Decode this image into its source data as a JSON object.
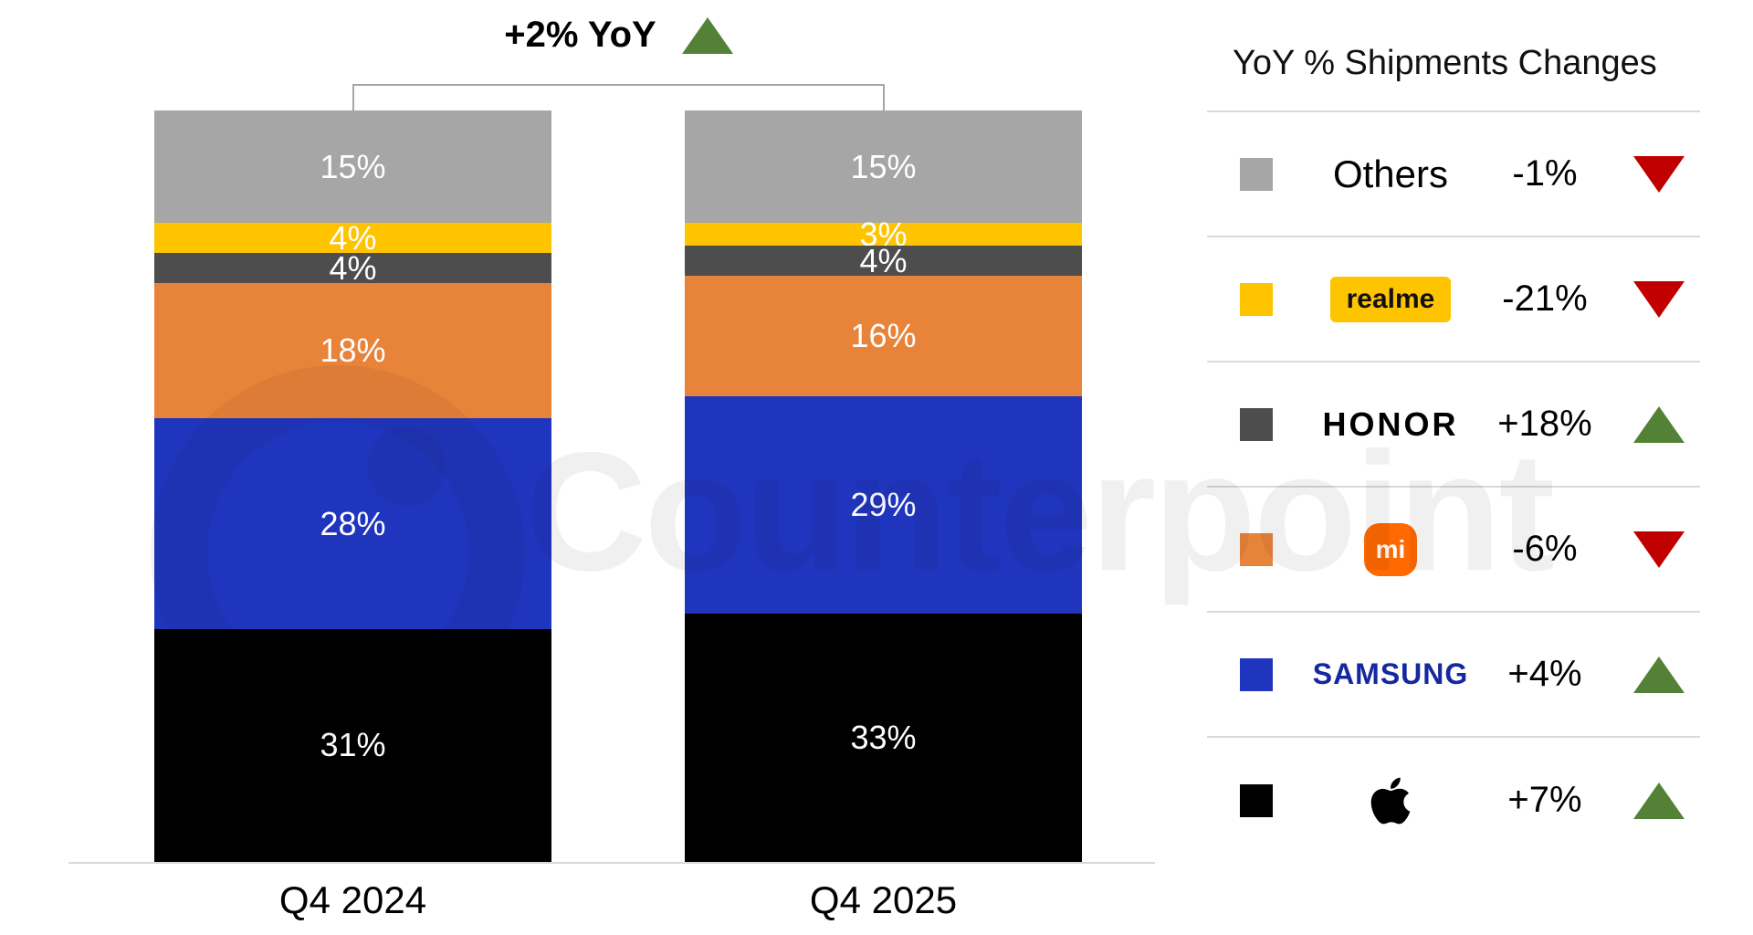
{
  "watermark": "Counterpoint",
  "legend": {
    "title": "YoY % Shipments Changes",
    "rows": [
      {
        "id": "others",
        "label": "Others",
        "logo_type": "text",
        "change": "-1%",
        "direction": "down",
        "swatch_color": "#a6a6a6"
      },
      {
        "id": "realme",
        "label": "realme",
        "logo_type": "badge",
        "change": "-21%",
        "direction": "down",
        "swatch_color": "#ffc400"
      },
      {
        "id": "honor",
        "label": "HONOR",
        "logo_type": "honor",
        "change": "+18%",
        "direction": "up",
        "swatch_color": "#4d4d4d"
      },
      {
        "id": "xiaomi",
        "label": "mi",
        "logo_type": "tile",
        "change": "-6%",
        "direction": "down",
        "swatch_color": "#e8833a"
      },
      {
        "id": "samsung",
        "label": "SAMSUNG",
        "logo_type": "samsung",
        "change": "+4%",
        "direction": "up",
        "swatch_color": "#1f35be"
      },
      {
        "id": "apple",
        "label": "",
        "logo_type": "apple",
        "change": "+7%",
        "direction": "up",
        "swatch_color": "#000000"
      }
    ]
  },
  "chart_data": {
    "type": "bar",
    "subtype": "stacked-100-percent",
    "title": "",
    "annotation": "+2% YoY",
    "annotation_direction": "up",
    "categories": [
      "Q4 2024",
      "Q4 2025"
    ],
    "series": [
      {
        "name": "Apple",
        "color": "#000000",
        "values": [
          31,
          33
        ]
      },
      {
        "name": "Samsung",
        "color": "#1f35be",
        "values": [
          28,
          29
        ]
      },
      {
        "name": "Xiaomi",
        "color": "#e8833a",
        "values": [
          18,
          16
        ]
      },
      {
        "name": "HONOR",
        "color": "#4d4d4d",
        "values": [
          4,
          4
        ]
      },
      {
        "name": "realme",
        "color": "#ffc400",
        "values": [
          4,
          3
        ]
      },
      {
        "name": "Others",
        "color": "#a6a6a6",
        "values": [
          15,
          15
        ]
      }
    ],
    "value_suffix": "%",
    "ylim": [
      0,
      100
    ],
    "grid": false,
    "legend_position": "right"
  },
  "colors": {
    "up": "#538135",
    "down": "#c00000",
    "axis": "#d9d9d9",
    "bracket": "#a6a6a6"
  }
}
